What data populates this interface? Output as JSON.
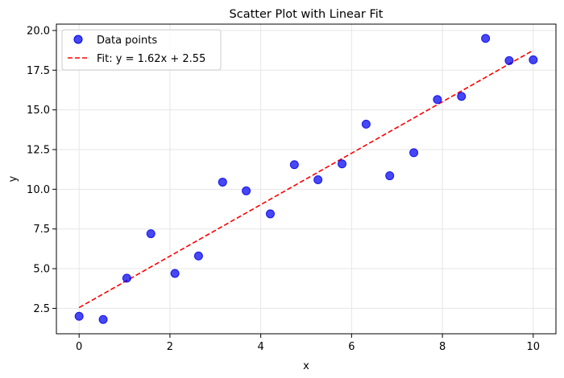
{
  "chart_data": {
    "type": "scatter",
    "title": "Scatter Plot with Linear Fit",
    "xlabel": "x",
    "ylabel": "y",
    "xlim": [
      -0.5,
      10.5
    ],
    "ylim": [
      0.9,
      20.4
    ],
    "x_ticks": [
      0,
      2,
      4,
      6,
      8,
      10
    ],
    "x_tick_labels": [
      "0",
      "2",
      "4",
      "6",
      "8",
      "10"
    ],
    "y_ticks": [
      2.5,
      5.0,
      7.5,
      10.0,
      12.5,
      15.0,
      17.5,
      20.0
    ],
    "y_tick_labels": [
      "2.5",
      "5.0",
      "7.5",
      "10.0",
      "12.5",
      "15.0",
      "17.5",
      "20.0"
    ],
    "grid": true,
    "legend_position": "top-left",
    "series": [
      {
        "name": "Data points",
        "kind": "scatter",
        "color": "#0000ee",
        "points": [
          {
            "x": 0.0,
            "y": 2.0
          },
          {
            "x": 0.53,
            "y": 1.8
          },
          {
            "x": 1.05,
            "y": 4.4
          },
          {
            "x": 1.58,
            "y": 7.2
          },
          {
            "x": 2.11,
            "y": 4.7
          },
          {
            "x": 2.63,
            "y": 5.8
          },
          {
            "x": 3.16,
            "y": 10.45
          },
          {
            "x": 3.68,
            "y": 9.9
          },
          {
            "x": 4.21,
            "y": 8.45
          },
          {
            "x": 4.74,
            "y": 11.55
          },
          {
            "x": 5.26,
            "y": 10.6
          },
          {
            "x": 5.79,
            "y": 11.6
          },
          {
            "x": 6.32,
            "y": 14.1
          },
          {
            "x": 6.84,
            "y": 10.85
          },
          {
            "x": 7.37,
            "y": 12.3
          },
          {
            "x": 7.89,
            "y": 15.65
          },
          {
            "x": 8.42,
            "y": 15.85
          },
          {
            "x": 8.95,
            "y": 19.5
          },
          {
            "x": 9.47,
            "y": 18.1
          },
          {
            "x": 10.0,
            "y": 18.15
          }
        ]
      },
      {
        "name": "Fit: y = 1.62x + 2.55",
        "kind": "line",
        "color": "#ff0000",
        "dashed": true,
        "slope": 1.62,
        "intercept": 2.55,
        "x_range": [
          0,
          10
        ]
      }
    ]
  }
}
